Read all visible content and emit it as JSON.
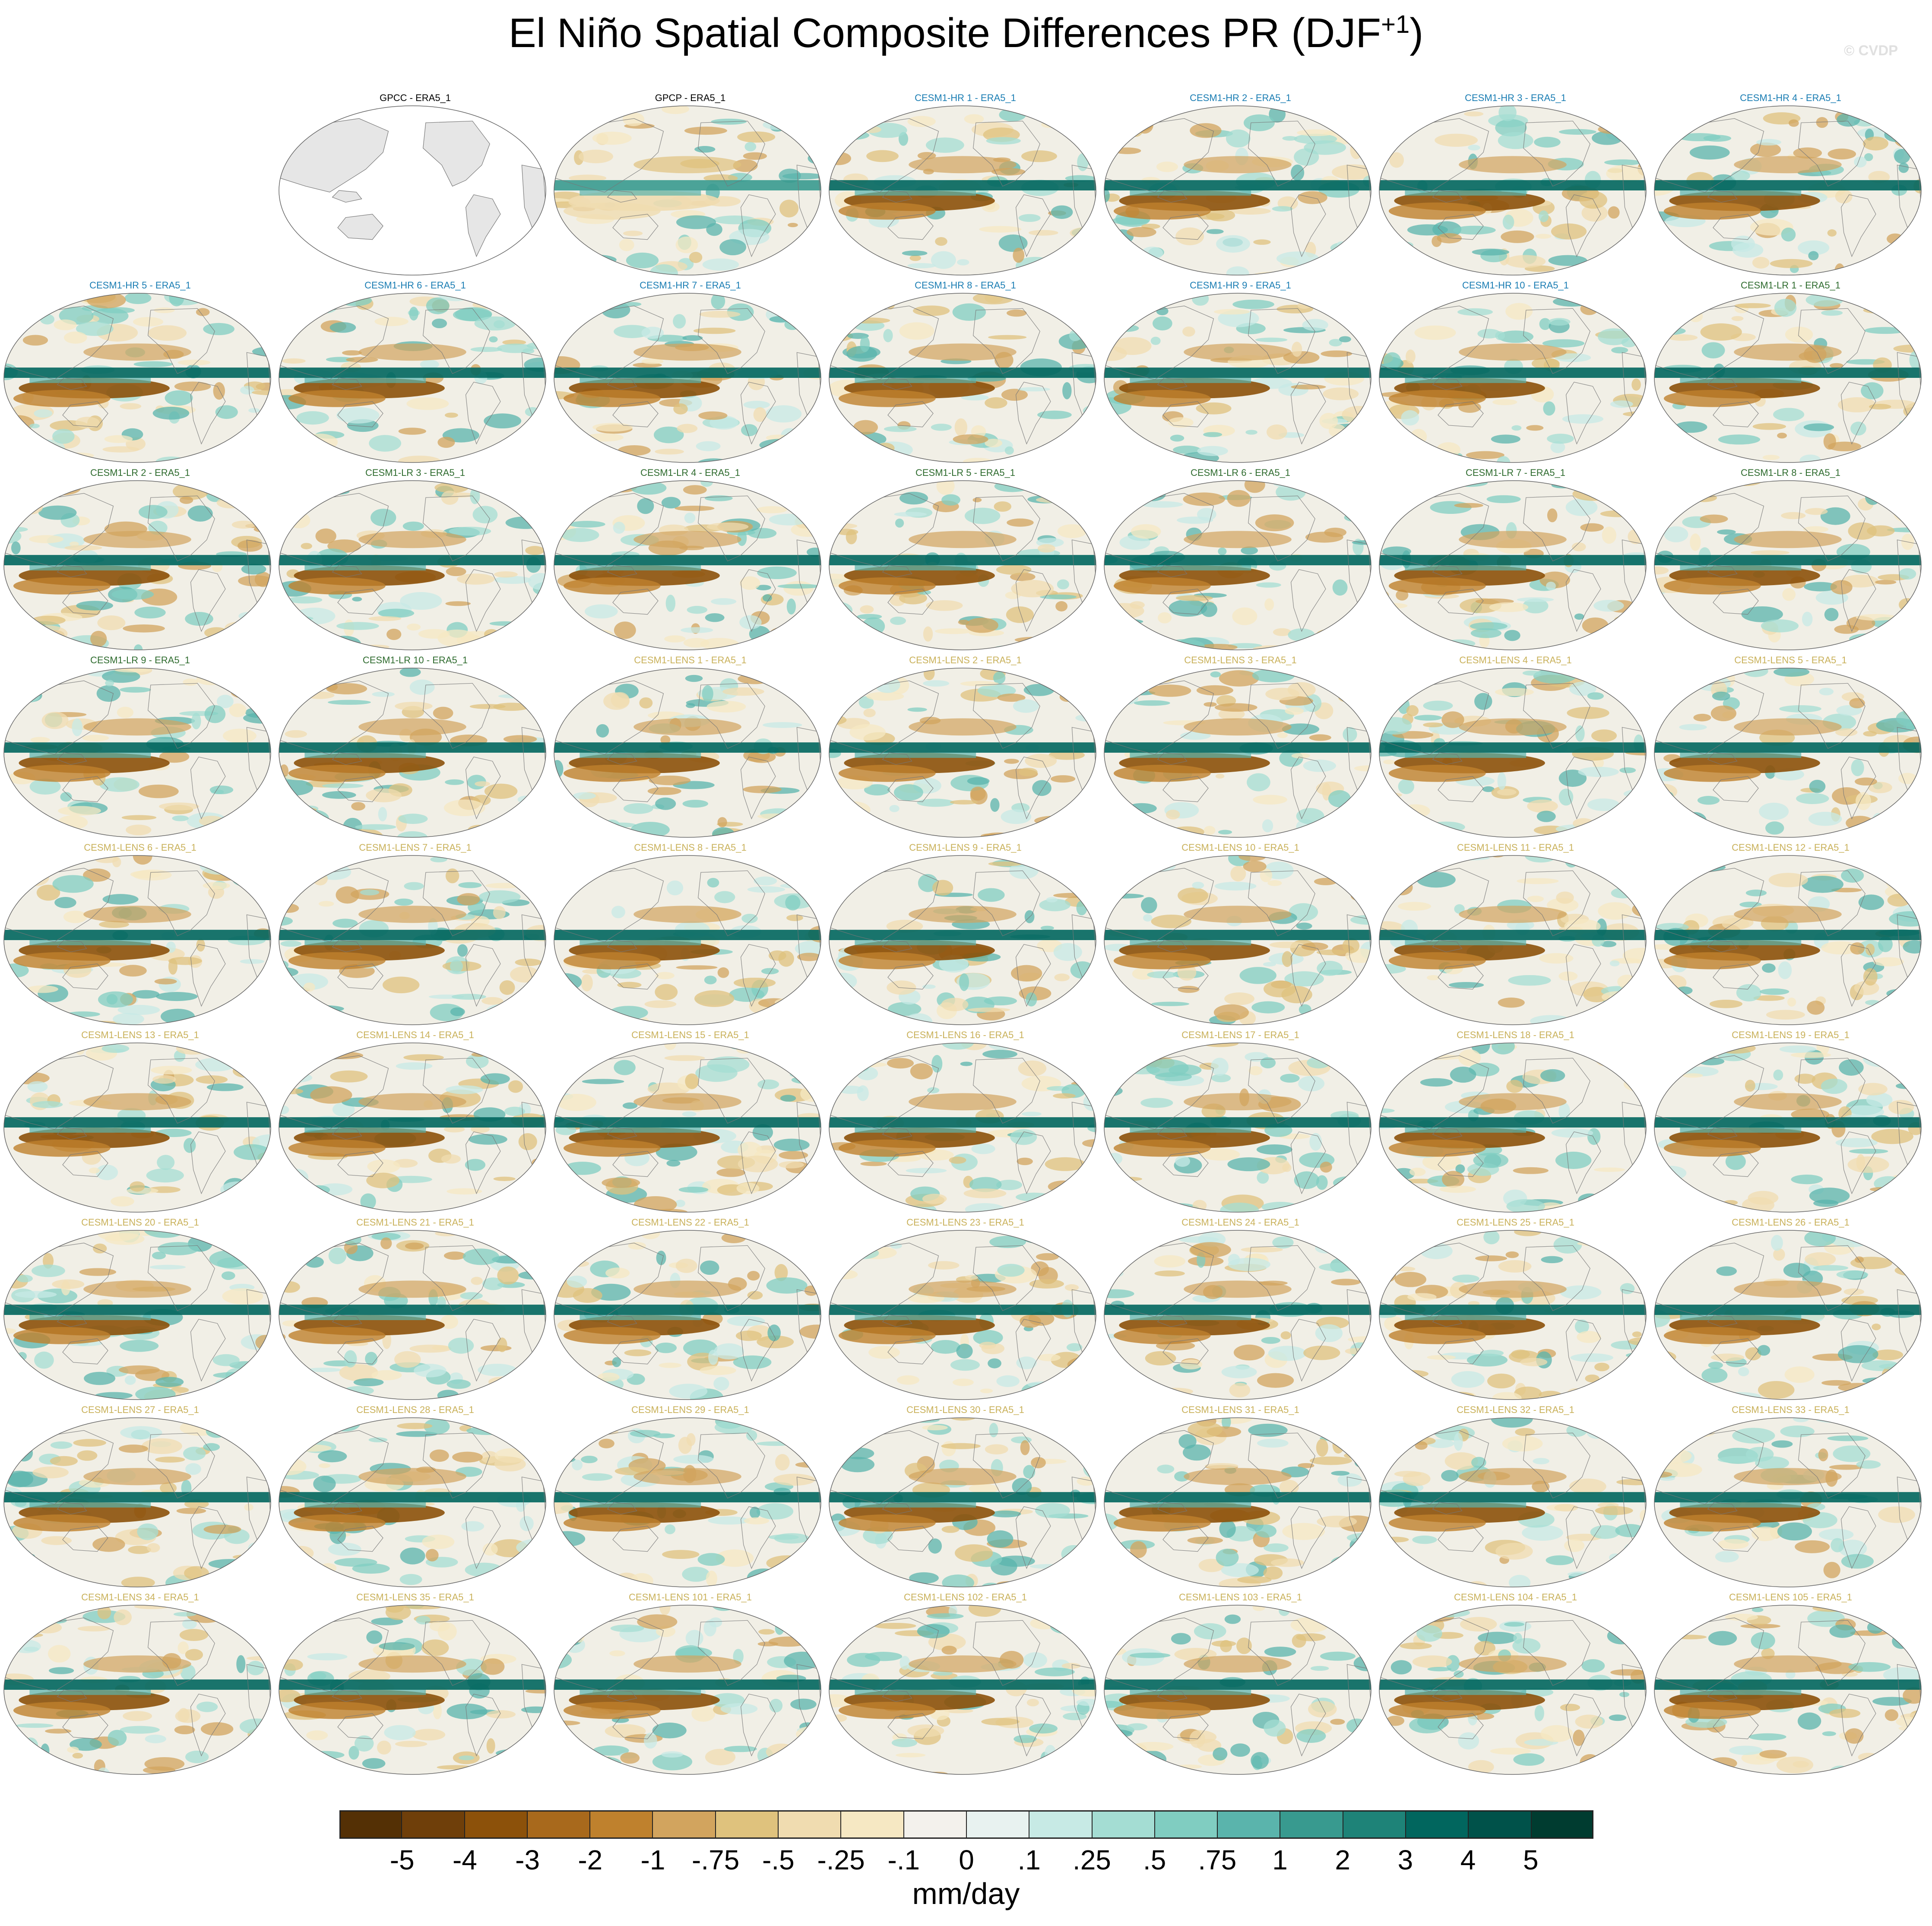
{
  "figure": {
    "title_main": "El Niño Spatial Composite Differences PR (DJF",
    "title_sup": "+1",
    "title_close": ")",
    "credit": "© CVDP"
  },
  "colors": {
    "obs_title": "#000000",
    "hr_title": "#1a7db3",
    "lr_title": "#2e6b2e",
    "lens_title": "#c9b15a",
    "land_obs": "#e6e6e6"
  },
  "panels": [
    {
      "label": "GPCC - ERA5_1",
      "group": "obs",
      "empty": true
    },
    {
      "label": "GPCP - ERA5_1",
      "group": "obs"
    },
    {
      "label": "CESM1-HR 1 - ERA5_1",
      "group": "hr"
    },
    {
      "label": "CESM1-HR 2 - ERA5_1",
      "group": "hr"
    },
    {
      "label": "CESM1-HR 3 - ERA5_1",
      "group": "hr"
    },
    {
      "label": "CESM1-HR 4 - ERA5_1",
      "group": "hr"
    },
    {
      "label": "CESM1-HR 5 - ERA5_1",
      "group": "hr"
    },
    {
      "label": "CESM1-HR 6 - ERA5_1",
      "group": "hr"
    },
    {
      "label": "CESM1-HR 7 - ERA5_1",
      "group": "hr"
    },
    {
      "label": "CESM1-HR 8 - ERA5_1",
      "group": "hr"
    },
    {
      "label": "CESM1-HR 9 - ERA5_1",
      "group": "hr"
    },
    {
      "label": "CESM1-HR 10 - ERA5_1",
      "group": "hr"
    },
    {
      "label": "CESM1-LR 1 - ERA5_1",
      "group": "lr"
    },
    {
      "label": "CESM1-LR 2 - ERA5_1",
      "group": "lr"
    },
    {
      "label": "CESM1-LR 3 - ERA5_1",
      "group": "lr"
    },
    {
      "label": "CESM1-LR 4 - ERA5_1",
      "group": "lr"
    },
    {
      "label": "CESM1-LR 5 - ERA5_1",
      "group": "lr"
    },
    {
      "label": "CESM1-LR 6 - ERA5_1",
      "group": "lr"
    },
    {
      "label": "CESM1-LR 7 - ERA5_1",
      "group": "lr"
    },
    {
      "label": "CESM1-LR 8 - ERA5_1",
      "group": "lr"
    },
    {
      "label": "CESM1-LR 9 - ERA5_1",
      "group": "lr"
    },
    {
      "label": "CESM1-LR 10 - ERA5_1",
      "group": "lr"
    },
    {
      "label": "CESM1-LENS 1 - ERA5_1",
      "group": "lens"
    },
    {
      "label": "CESM1-LENS 2 - ERA5_1",
      "group": "lens"
    },
    {
      "label": "CESM1-LENS 3 - ERA5_1",
      "group": "lens"
    },
    {
      "label": "CESM1-LENS 4 - ERA5_1",
      "group": "lens"
    },
    {
      "label": "CESM1-LENS 5 - ERA5_1",
      "group": "lens"
    },
    {
      "label": "CESM1-LENS 6 - ERA5_1",
      "group": "lens"
    },
    {
      "label": "CESM1-LENS 7 - ERA5_1",
      "group": "lens"
    },
    {
      "label": "CESM1-LENS 8 - ERA5_1",
      "group": "lens"
    },
    {
      "label": "CESM1-LENS 9 - ERA5_1",
      "group": "lens"
    },
    {
      "label": "CESM1-LENS 10 - ERA5_1",
      "group": "lens"
    },
    {
      "label": "CESM1-LENS 11 - ERA5_1",
      "group": "lens"
    },
    {
      "label": "CESM1-LENS 12 - ERA5_1",
      "group": "lens"
    },
    {
      "label": "CESM1-LENS 13 - ERA5_1",
      "group": "lens"
    },
    {
      "label": "CESM1-LENS 14 - ERA5_1",
      "group": "lens"
    },
    {
      "label": "CESM1-LENS 15 - ERA5_1",
      "group": "lens"
    },
    {
      "label": "CESM1-LENS 16 - ERA5_1",
      "group": "lens"
    },
    {
      "label": "CESM1-LENS 17 - ERA5_1",
      "group": "lens"
    },
    {
      "label": "CESM1-LENS 18 - ERA5_1",
      "group": "lens"
    },
    {
      "label": "CESM1-LENS 19 - ERA5_1",
      "group": "lens"
    },
    {
      "label": "CESM1-LENS 20 - ERA5_1",
      "group": "lens"
    },
    {
      "label": "CESM1-LENS 21 - ERA5_1",
      "group": "lens"
    },
    {
      "label": "CESM1-LENS 22 - ERA5_1",
      "group": "lens"
    },
    {
      "label": "CESM1-LENS 23 - ERA5_1",
      "group": "lens"
    },
    {
      "label": "CESM1-LENS 24 - ERA5_1",
      "group": "lens"
    },
    {
      "label": "CESM1-LENS 25 - ERA5_1",
      "group": "lens"
    },
    {
      "label": "CESM1-LENS 26 - ERA5_1",
      "group": "lens"
    },
    {
      "label": "CESM1-LENS 27 - ERA5_1",
      "group": "lens"
    },
    {
      "label": "CESM1-LENS 28 - ERA5_1",
      "group": "lens"
    },
    {
      "label": "CESM1-LENS 29 - ERA5_1",
      "group": "lens"
    },
    {
      "label": "CESM1-LENS 30 - ERA5_1",
      "group": "lens"
    },
    {
      "label": "CESM1-LENS 31 - ERA5_1",
      "group": "lens"
    },
    {
      "label": "CESM1-LENS 32 - ERA5_1",
      "group": "lens"
    },
    {
      "label": "CESM1-LENS 33 - ERA5_1",
      "group": "lens"
    },
    {
      "label": "CESM1-LENS 34 - ERA5_1",
      "group": "lens"
    },
    {
      "label": "CESM1-LENS 35 - ERA5_1",
      "group": "lens"
    },
    {
      "label": "CESM1-LENS 101 - ERA5_1",
      "group": "lens"
    },
    {
      "label": "CESM1-LENS 102 - ERA5_1",
      "group": "lens"
    },
    {
      "label": "CESM1-LENS 103 - ERA5_1",
      "group": "lens"
    },
    {
      "label": "CESM1-LENS 104 - ERA5_1",
      "group": "lens"
    },
    {
      "label": "CESM1-LENS 105 - ERA5_1",
      "group": "lens"
    }
  ],
  "colorbar": {
    "units": "mm/day",
    "labels": [
      "-5",
      "-4",
      "-3",
      "-2",
      "-1",
      "-.75",
      "-.5",
      "-.25",
      "-.1",
      "0",
      ".1",
      ".25",
      ".5",
      ".75",
      "1",
      "2",
      "3",
      "4",
      "5"
    ],
    "colors": [
      "#543005",
      "#6f3f0a",
      "#8c510a",
      "#a8691c",
      "#bf812d",
      "#d2a45e",
      "#dfc27d",
      "#f0dcb0",
      "#f6e8c3",
      "#f3f1ec",
      "#e8f2f0",
      "#c7eae5",
      "#a4ddd3",
      "#80cdc1",
      "#5ab4ac",
      "#389a8f",
      "#1e8378",
      "#01665e",
      "#00524a",
      "#003c30"
    ]
  },
  "chart_data": {
    "type": "heatmap",
    "title": "El Niño Spatial Composite Differences PR (DJF+1)",
    "variable": "PR",
    "season": "DJF+1",
    "projection": "global, Pacific-centered",
    "panel_count": 62,
    "panel_labels_ref": "panels",
    "colorbar_units": "mm/day",
    "colorbar_levels": [
      -5,
      -4,
      -3,
      -2,
      -1,
      -0.75,
      -0.5,
      -0.25,
      -0.1,
      0,
      0.1,
      0.25,
      0.5,
      0.75,
      1,
      2,
      3,
      4,
      5
    ]
  }
}
